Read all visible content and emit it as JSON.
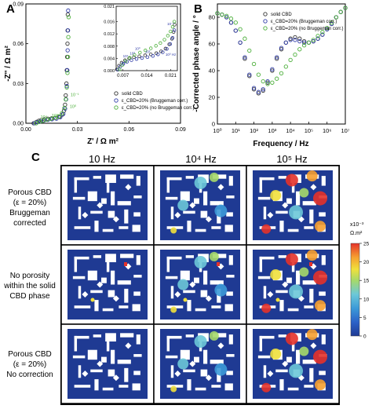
{
  "figure": {
    "panel_labels": [
      "A",
      "B",
      "C"
    ]
  },
  "chart_data": [
    {
      "panel": "A",
      "type": "scatter",
      "xlabel": "Z' / Ω m²",
      "ylabel": "-Z'' / Ω m²",
      "xlim": [
        0.0,
        0.09
      ],
      "ylim": [
        0.0,
        0.09
      ],
      "xticks": [
        "0.00",
        "0.03",
        "0.06",
        "0.09"
      ],
      "yticks": [
        "0.00",
        "0.03",
        "0.06",
        "0.09"
      ],
      "legend_placement": "bottom-right",
      "series": [
        {
          "name": "solid CBD",
          "color": "#333333",
          "x": [
            0.0045,
            0.0062,
            0.0075,
            0.009,
            0.0108,
            0.0128,
            0.015,
            0.0172,
            0.0195,
            0.0212,
            0.0222,
            0.0228,
            0.0232,
            0.0236,
            0.0238,
            0.024,
            0.0242,
            0.0243,
            0.0244
          ],
          "y": [
            0.0,
            0.001,
            0.0018,
            0.0025,
            0.003,
            0.0034,
            0.0037,
            0.004,
            0.0048,
            0.0065,
            0.0095,
            0.014,
            0.021,
            0.03,
            0.04,
            0.05,
            0.06,
            0.07,
            0.082
          ]
        },
        {
          "name": "ε_CBD=20% (Bruggeman corr.)",
          "color": "#2f3ca8",
          "x": [
            0.005,
            0.0068,
            0.0085,
            0.0105,
            0.0128,
            0.0152,
            0.0178,
            0.02,
            0.0218,
            0.0228,
            0.0234,
            0.0238,
            0.0241,
            0.0243,
            0.0245,
            0.0246
          ],
          "y": [
            0.0,
            0.0008,
            0.0015,
            0.0021,
            0.0026,
            0.003,
            0.0035,
            0.0046,
            0.007,
            0.011,
            0.018,
            0.028,
            0.04,
            0.055,
            0.07,
            0.085
          ]
        },
        {
          "name": "ε_CBD=20% (no Bruggeman corr.)",
          "color": "#4caf3a",
          "x": [
            0.006,
            0.008,
            0.01,
            0.0122,
            0.0145,
            0.017,
            0.0192,
            0.021,
            0.0224,
            0.0232,
            0.0238,
            0.0242,
            0.0245,
            0.0247,
            0.0249
          ],
          "y": [
            0.0,
            0.001,
            0.0019,
            0.0027,
            0.0034,
            0.0041,
            0.0052,
            0.0075,
            0.0115,
            0.018,
            0.027,
            0.038,
            0.05,
            0.065,
            0.08
          ]
        }
      ],
      "annotations": [
        {
          "text": "10⁻¹",
          "x": 0.026,
          "y": 0.0205
        },
        {
          "text": "10⁰",
          "x": 0.0255,
          "y": 0.0115
        },
        {
          "text": "10²",
          "x": 0.015,
          "y": 0.0048
        },
        {
          "text": "10⁴",
          "x": 0.0085,
          "y": 0.0035
        }
      ],
      "inset": {
        "xlim": [
          0.005,
          0.023
        ],
        "ylim": [
          0.0,
          0.021
        ],
        "xticks": [
          "0.007",
          "0.014",
          "0.021"
        ],
        "yticks": [
          "0.000",
          "0.004",
          "0.008",
          "0.012",
          "0.016",
          "0.021"
        ],
        "series": [
          {
            "name": "solid CBD",
            "color": "#333333",
            "x": [
              0.0052,
              0.0058,
              0.0066,
              0.0076,
              0.0088,
              0.0102,
              0.0118,
              0.0135,
              0.0152,
              0.0168,
              0.0182,
              0.0195,
              0.0206,
              0.0214,
              0.0219,
              0.0222
            ],
            "y": [
              0.0004,
              0.0016,
              0.0026,
              0.0034,
              0.004,
              0.0044,
              0.0047,
              0.005,
              0.0053,
              0.0057,
              0.0063,
              0.0072,
              0.0086,
              0.0104,
              0.0126,
              0.015
            ]
          },
          {
            "name": "ε_CBD=20% (Bruggeman corr.)",
            "color": "#2f3ca8",
            "x": [
              0.0055,
              0.0062,
              0.0071,
              0.0082,
              0.0095,
              0.011,
              0.0126,
              0.0142,
              0.0158,
              0.0173,
              0.0187,
              0.0199,
              0.0209,
              0.0216,
              0.0221
            ],
            "y": [
              0.0003,
              0.0013,
              0.0022,
              0.0029,
              0.0034,
              0.0038,
              0.0041,
              0.0044,
              0.0048,
              0.0053,
              0.006,
              0.0071,
              0.0087,
              0.0107,
              0.0132
            ]
          },
          {
            "name": "ε_CBD=20% (no Bruggeman corr.)",
            "color": "#4caf3a",
            "x": [
              0.006,
              0.0068,
              0.0078,
              0.009,
              0.0104,
              0.012,
              0.0136,
              0.0152,
              0.0167,
              0.018,
              0.0192,
              0.0202,
              0.021,
              0.0216,
              0.0221
            ],
            "y": [
              0.0004,
              0.0018,
              0.0031,
              0.0042,
              0.0051,
              0.0059,
              0.0066,
              0.0073,
              0.0081,
              0.009,
              0.0101,
              0.0114,
              0.0128,
              0.0143,
              0.016
            ]
          }
        ],
        "annotations": [
          {
            "text": "10⁰",
            "x": 0.0105,
            "y": 0.0068
          },
          {
            "text": "10²",
            "x": 0.0135,
            "y": 0.0058
          },
          {
            "text": "10³",
            "x": 0.009,
            "y": 0.0052
          },
          {
            "text": "10⁴",
            "x": 0.007,
            "y": 0.0043
          },
          {
            "text": "10⁵",
            "x": 0.0064,
            "y": 0.002
          },
          {
            "text": "10⁻¹",
            "x": 0.02,
            "y": 0.0148
          },
          {
            "text": "10⁰ Hz",
            "x": 0.0195,
            "y": 0.0049
          }
        ]
      }
    },
    {
      "panel": "B",
      "type": "scatter",
      "xlabel": "Frequency / Hz",
      "ylabel": "-Corrected phase angle / °",
      "xscale": "log",
      "xlim": [
        1,
        10000000
      ],
      "ylim": [
        0,
        90
      ],
      "xticks": [
        "10⁰",
        "10¹",
        "10²",
        "10³",
        "10⁴",
        "10⁵",
        "10⁶",
        "10⁷"
      ],
      "yticks": [
        "0",
        "20",
        "40",
        "60",
        "80"
      ],
      "legend_placement": "top-center",
      "series": [
        {
          "name": "solid CBD",
          "color": "#333333",
          "x": [
            1,
            1.78,
            3.16,
            5.62,
            10,
            17.8,
            31.6,
            56.2,
            100,
            178,
            316,
            562,
            1000,
            1780,
            3160,
            5620,
            10000,
            17800,
            31600,
            56200,
            100000,
            178000,
            316000,
            562000,
            1000000,
            1780000,
            3160000,
            5620000,
            10000000
          ],
          "y": [
            83,
            82,
            80,
            76,
            70,
            61,
            49,
            36,
            26,
            23,
            25,
            31,
            40,
            49,
            56,
            61,
            64,
            65,
            64,
            62,
            61,
            62,
            64,
            67,
            71,
            75,
            80,
            84,
            87
          ]
        },
        {
          "name": "ε_CBD=20% (Bruggeman corr.)",
          "color": "#2f3ca8",
          "x": [
            1,
            1.78,
            3.16,
            5.62,
            10,
            17.8,
            31.6,
            56.2,
            100,
            178,
            316,
            562,
            1000,
            1780,
            3160,
            5620,
            10000,
            17800,
            31600,
            56200,
            100000,
            178000,
            316000,
            562000,
            1000000,
            1780000,
            3160000,
            5620000,
            10000000
          ],
          "y": [
            83,
            82,
            80,
            76,
            70,
            61,
            50,
            37,
            27,
            24,
            26,
            32,
            41,
            50,
            57,
            61,
            63,
            63,
            62,
            61,
            61,
            62,
            64,
            67,
            71,
            75,
            80,
            84,
            87
          ]
        },
        {
          "name": "ε_CBD=20% (no Bruggeman corr.)",
          "color": "#4caf3a",
          "x": [
            1,
            1.78,
            3.16,
            5.62,
            10,
            17.8,
            31.6,
            56.2,
            100,
            178,
            316,
            562,
            1000,
            1780,
            3160,
            5620,
            10000,
            17800,
            31600,
            56200,
            100000,
            178000,
            316000,
            562000,
            1000000,
            1780000,
            3160000,
            5620000,
            10000000
          ],
          "y": [
            83,
            82,
            81,
            79,
            76,
            71,
            64,
            55,
            45,
            37,
            32,
            30,
            31,
            34,
            38,
            43,
            48,
            52,
            56,
            59,
            61,
            63,
            66,
            69,
            72,
            76,
            80,
            84,
            87
          ]
        }
      ]
    },
    {
      "panel": "C",
      "type": "heatmap",
      "column_headers": [
        "10  Hz",
        "10⁴  Hz",
        "10⁵  Hz"
      ],
      "row_labels": [
        [
          "Porous CBD",
          "(ε = 20%)",
          "Bruggeman",
          "corrected"
        ],
        [
          "No porosity",
          "within the solid",
          "CBD phase"
        ],
        [
          "Porous CBD",
          "(ε = 20%)",
          "No correction"
        ]
      ],
      "colorbar": {
        "unit_lines": [
          "x10⁻³",
          "Ω.m²"
        ],
        "range": [
          0,
          25
        ],
        "ticks": [
          "0",
          "5",
          "10",
          "15",
          "20",
          "25"
        ],
        "colors": [
          "#1f3a93",
          "#2c62c8",
          "#3c9ad8",
          "#6cc8d8",
          "#a6d96a",
          "#f0e03c",
          "#f6a030",
          "#e4322a"
        ]
      }
    }
  ]
}
